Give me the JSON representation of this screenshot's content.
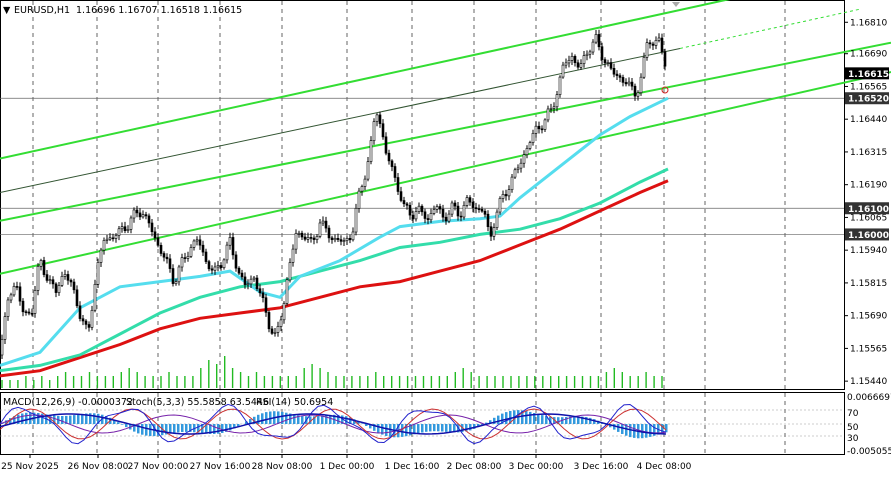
{
  "header": {
    "symbol": "EURUSD,H1",
    "ohlc": "1.16696 1.16707 1.16518 1.16615"
  },
  "indicator_header": {
    "macd": "MACD(12,26,9) -0.0000372",
    "stoch": "Stoch(5,3,3) 55.5858 63.5446",
    "rsi": "RSI(14) 50.6954"
  },
  "price_axis_ticks": [
    "1.16810",
    "1.16690",
    "1.16565",
    "1.16440",
    "1.16315",
    "1.16190",
    "1.16065",
    "1.15940",
    "1.15815",
    "1.15690",
    "1.15565",
    "1.15440"
  ],
  "price_tags": [
    {
      "label": "1.16615",
      "value": 1.16615,
      "style": "black"
    },
    {
      "label": "1.16520",
      "value": 1.1652,
      "style": "dark"
    },
    {
      "label": "1.16100",
      "value": 1.161,
      "style": "dark"
    },
    {
      "label": "1.16000",
      "value": 1.16,
      "style": "dark"
    }
  ],
  "indicator_axis": {
    "top": "0.0066697",
    "bottom": "-0.0050559",
    "levels": [
      "70",
      "50",
      "30"
    ]
  },
  "time_axis_ticks": [
    "25 Nov 2025",
    "26 Nov 08:00",
    "27 Nov 00:00",
    "27 Nov 16:00",
    "28 Nov 08:00",
    "1 Dec 00:00",
    "1 Dec 16:00",
    "2 Dec 08:00",
    "3 Dec 00:00",
    "3 Dec 16:00",
    "4 Dec 08:00"
  ],
  "colors": {
    "channel": "#33dd33",
    "ema_fast": "#55ddee",
    "ema_mid": "#33ddaa",
    "ema_slow": "#dd1111",
    "candles": "#000000",
    "volume": "#22bb22",
    "macd_hist": "#3399dd",
    "macd_signal": "#1111aa",
    "stoch_main": "#2222cc",
    "stoch_signal": "#cc3333",
    "rsi": "#7722aa"
  },
  "chart_data": {
    "type": "candlestick",
    "symbol": "EURUSD",
    "timeframe": "H1",
    "last_bar": {
      "open": 1.16696,
      "high": 1.16707,
      "low": 1.16518,
      "close": 1.16615
    },
    "ylim": [
      1.1541,
      1.16895
    ],
    "key_levels": [
      1.1652,
      1.161,
      1.16
    ],
    "close_path": [
      [
        0,
        1.1554
      ],
      [
        8,
        1.1575
      ],
      [
        16,
        1.1582
      ],
      [
        24,
        1.1568
      ],
      [
        32,
        1.1572
      ],
      [
        40,
        1.159
      ],
      [
        48,
        1.1583
      ],
      [
        56,
        1.1578
      ],
      [
        64,
        1.1586
      ],
      [
        72,
        1.158
      ],
      [
        80,
        1.157
      ],
      [
        88,
        1.1561
      ],
      [
        96,
        1.1585
      ],
      [
        104,
        1.1598
      ],
      [
        112,
        1.1599
      ],
      [
        120,
        1.1601
      ],
      [
        128,
        1.1604
      ],
      [
        136,
        1.1608
      ],
      [
        142,
        1.1609
      ],
      [
        150,
        1.1603
      ],
      [
        158,
        1.1596
      ],
      [
        166,
        1.159
      ],
      [
        174,
        1.1582
      ],
      [
        182,
        1.1589
      ],
      [
        190,
        1.1595
      ],
      [
        198,
        1.1598
      ],
      [
        206,
        1.159
      ],
      [
        214,
        1.1585
      ],
      [
        222,
        1.159
      ],
      [
        230,
        1.1597
      ],
      [
        238,
        1.1586
      ],
      [
        246,
        1.158
      ],
      [
        254,
        1.1584
      ],
      [
        262,
        1.1575
      ],
      [
        270,
        1.1565
      ],
      [
        276,
        1.156
      ],
      [
        282,
        1.157
      ],
      [
        288,
        1.1585
      ],
      [
        296,
        1.16
      ],
      [
        304,
        1.16
      ],
      [
        312,
        1.1596
      ],
      [
        320,
        1.1605
      ],
      [
        328,
        1.16
      ],
      [
        336,
        1.1598
      ],
      [
        344,
        1.1597
      ],
      [
        352,
        1.16
      ],
      [
        358,
        1.1613
      ],
      [
        364,
        1.1622
      ],
      [
        370,
        1.1631
      ],
      [
        376,
        1.1648
      ],
      [
        380,
        1.1643
      ],
      [
        386,
        1.1631
      ],
      [
        392,
        1.1625
      ],
      [
        398,
        1.1618
      ],
      [
        404,
        1.161
      ],
      [
        412,
        1.1608
      ],
      [
        420,
        1.1609
      ],
      [
        428,
        1.1606
      ],
      [
        436,
        1.1611
      ],
      [
        444,
        1.1606
      ],
      [
        452,
        1.161
      ],
      [
        460,
        1.1608
      ],
      [
        468,
        1.1613
      ],
      [
        476,
        1.161
      ],
      [
        484,
        1.1609
      ],
      [
        490,
        1.1598
      ],
      [
        496,
        1.1608
      ],
      [
        504,
        1.1615
      ],
      [
        512,
        1.1621
      ],
      [
        520,
        1.1627
      ],
      [
        528,
        1.1634
      ],
      [
        536,
        1.164
      ],
      [
        544,
        1.1643
      ],
      [
        552,
        1.1648
      ],
      [
        558,
        1.1656
      ],
      [
        564,
        1.1665
      ],
      [
        572,
        1.1668
      ],
      [
        580,
        1.1663
      ],
      [
        588,
        1.1671
      ],
      [
        596,
        1.1674
      ],
      [
        604,
        1.1667
      ],
      [
        612,
        1.1662
      ],
      [
        620,
        1.166
      ],
      [
        628,
        1.1657
      ],
      [
        636,
        1.1654
      ],
      [
        642,
        1.166
      ],
      [
        648,
        1.1676
      ],
      [
        654,
        1.1672
      ],
      [
        660,
        1.1675
      ],
      [
        664,
        1.1665
      ],
      [
        668,
        1.16615
      ]
    ],
    "series": [
      {
        "values": [
          [
            0,
            1.1546
          ],
          [
            40,
            1.1548
          ],
          [
            80,
            1.1553
          ],
          [
            120,
            1.1558
          ],
          [
            160,
            1.1564
          ],
          [
            200,
            1.1568
          ],
          [
            240,
            1.157
          ],
          [
            280,
            1.1572
          ],
          [
            320,
            1.1576
          ],
          [
            360,
            1.158
          ],
          [
            400,
            1.1582
          ],
          [
            440,
            1.1586
          ],
          [
            480,
            1.159
          ],
          [
            520,
            1.1596
          ],
          [
            560,
            1.1602
          ],
          [
            600,
            1.1609
          ],
          [
            640,
            1.1616
          ],
          [
            668,
            1.16205
          ]
        ]
      },
      {
        "values": [
          [
            0,
            1.1548
          ],
          [
            40,
            1.155
          ],
          [
            80,
            1.1554
          ],
          [
            120,
            1.1562
          ],
          [
            160,
            1.157
          ],
          [
            200,
            1.1576
          ],
          [
            240,
            1.158
          ],
          [
            280,
            1.1582
          ],
          [
            320,
            1.1586
          ],
          [
            360,
            1.159
          ],
          [
            400,
            1.1595
          ],
          [
            440,
            1.1597
          ],
          [
            480,
            1.16
          ],
          [
            520,
            1.1602
          ],
          [
            560,
            1.1606
          ],
          [
            600,
            1.1612
          ],
          [
            640,
            1.162
          ],
          [
            668,
            1.1625
          ]
        ]
      },
      {
        "values": [
          [
            0,
            1.155
          ],
          [
            40,
            1.1555
          ],
          [
            80,
            1.1572
          ],
          [
            120,
            1.158
          ],
          [
            160,
            1.1582
          ],
          [
            200,
            1.1584
          ],
          [
            230,
            1.1586
          ],
          [
            260,
            1.1578
          ],
          [
            280,
            1.1576
          ],
          [
            300,
            1.1584
          ],
          [
            340,
            1.159
          ],
          [
            380,
            1.1599
          ],
          [
            400,
            1.1603
          ],
          [
            440,
            1.1605
          ],
          [
            480,
            1.1606
          ],
          [
            500,
            1.1607
          ],
          [
            520,
            1.1614
          ],
          [
            560,
            1.1626
          ],
          [
            600,
            1.1638
          ],
          [
            630,
            1.1645
          ],
          [
            668,
            1.1652
          ]
        ]
      }
    ],
    "channel_lines": [
      [
        [
          0,
          1.1629
        ],
        [
          740,
          1.16907
        ]
      ],
      [
        [
          0,
          1.16052
        ],
        [
          891,
          1.16732
        ]
      ],
      [
        [
          0,
          1.1585
        ],
        [
          891,
          1.1662
        ]
      ]
    ],
    "midline": [
      [
        0,
        1.1616
      ],
      [
        680,
        1.1671
      ],
      [
        860,
        1.1686
      ]
    ],
    "volume": [
      2,
      2,
      2,
      3,
      2,
      3,
      2,
      3,
      4,
      3,
      3,
      4,
      3,
      3,
      3,
      4,
      5,
      4,
      3,
      3,
      3,
      4,
      3,
      3,
      3,
      5,
      7,
      6,
      8,
      5,
      4,
      3,
      4,
      3,
      3,
      3,
      3,
      3,
      5,
      6,
      5,
      4,
      3,
      3,
      3,
      3,
      3,
      4,
      3,
      3,
      3,
      3,
      3,
      3,
      3,
      3,
      3,
      4,
      5,
      4,
      3,
      3,
      3,
      3,
      3,
      3,
      3,
      3,
      3,
      3,
      3,
      3,
      3,
      3,
      3,
      3,
      4,
      5,
      4,
      3,
      3,
      4,
      3,
      3
    ],
    "stoch_rsi": {
      "stoch_main": 55.5858,
      "stoch_signal": 63.5446,
      "rsi": 50.6954,
      "levels": [
        70,
        50,
        30
      ]
    }
  }
}
